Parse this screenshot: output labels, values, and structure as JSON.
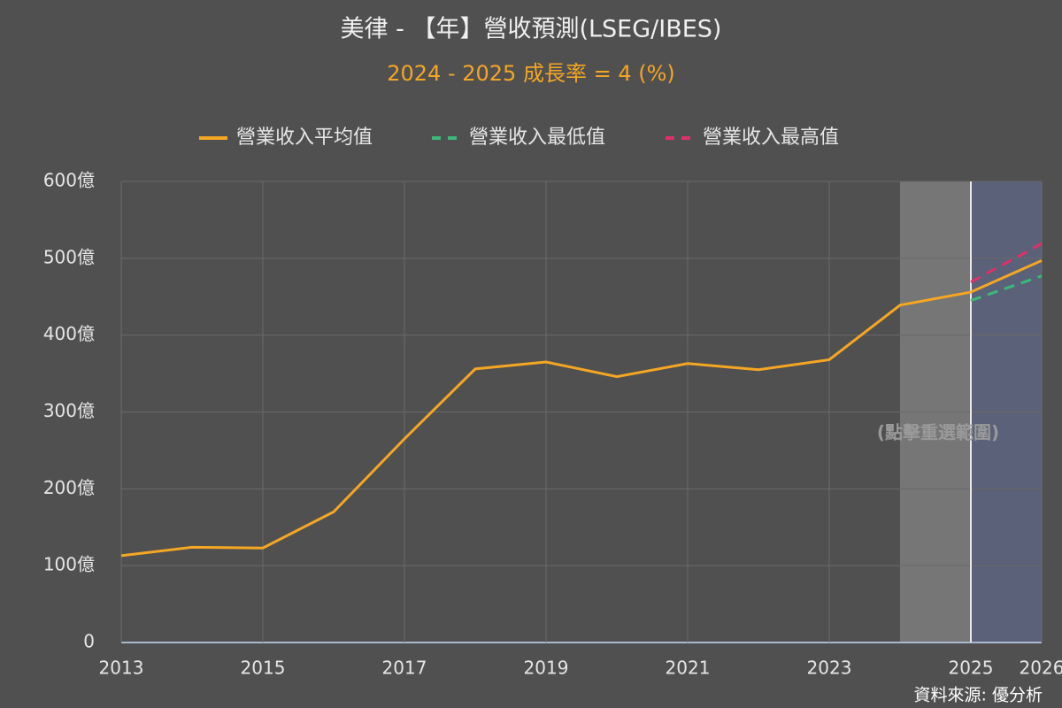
{
  "chart_data": {
    "type": "line",
    "title": "美律 - 【年】營收預測(LSEG/IBES)",
    "subtitle": "2024 - 2025 成長率 = 4 (%)",
    "x": [
      2013,
      2014,
      2015,
      2016,
      2017,
      2018,
      2019,
      2020,
      2021,
      2022,
      2023,
      2024,
      2025,
      2026
    ],
    "series": [
      {
        "name": "營業收入平均值",
        "color": "#f5a623",
        "dash": false,
        "values": [
          113,
          124,
          123,
          170,
          265,
          356,
          365,
          346,
          363,
          355,
          368,
          439,
          456,
          497
        ]
      },
      {
        "name": "營業收入最低值",
        "color": "#3cb878",
        "dash": true,
        "values": [
          null,
          null,
          null,
          null,
          null,
          null,
          null,
          null,
          null,
          null,
          null,
          null,
          445,
          477
        ]
      },
      {
        "name": "營業收入最高值",
        "color": "#e0306a",
        "dash": true,
        "values": [
          null,
          null,
          null,
          null,
          null,
          null,
          null,
          null,
          null,
          null,
          null,
          null,
          469,
          519
        ]
      }
    ],
    "xlim": [
      2013,
      2026
    ],
    "xticks": [
      2013,
      2015,
      2017,
      2019,
      2021,
      2023,
      2025,
      2026
    ],
    "ylim": [
      0,
      600
    ],
    "yticks": [
      0,
      {
        "value": 100,
        "label": "100億"
      },
      {
        "value": 200,
        "label": "200億"
      },
      {
        "value": 300,
        "label": "300億"
      },
      {
        "value": 400,
        "label": "400億"
      },
      {
        "value": 500,
        "label": "500億"
      },
      {
        "value": 600,
        "label": "600億"
      }
    ],
    "grid": true,
    "legend": "top",
    "shaded_ranges": [
      {
        "xrange": [
          2024,
          2025
        ],
        "color": "#767676"
      },
      {
        "xrange": [
          2025,
          2026
        ],
        "color": "#5a6178"
      }
    ],
    "annotation": "(點擊重選範圍)",
    "source": "資料來源: 優分析"
  }
}
